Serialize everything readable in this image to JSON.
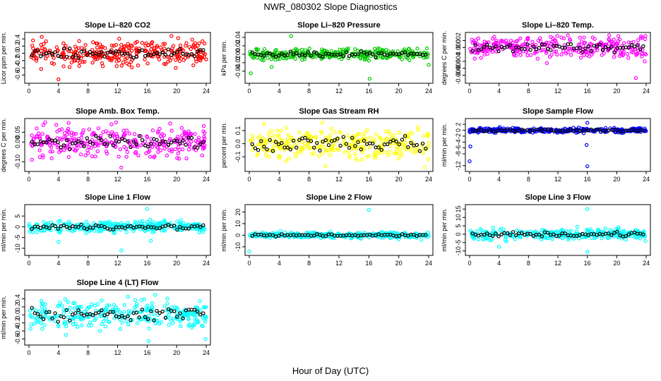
{
  "figure": {
    "title": "NWR_080302  Slope Diagnostics",
    "xlabel": "Hour of Day (UTC)"
  },
  "chart_data": [
    {
      "type": "scatter",
      "title": "Slope Li–820 CO2",
      "ylabel": "Licor ppm per min.",
      "xlim": [
        0,
        24
      ],
      "ylim": [
        -0.75,
        0.5
      ],
      "xticks": [
        "0",
        "4",
        "8",
        "12",
        "16",
        "20",
        "24"
      ],
      "yticks": [
        "-0.6",
        "-0.4",
        "-0.2",
        "0.0",
        "0.2",
        "0.4"
      ],
      "color": "#ff0000",
      "spread": 0.2,
      "seed": 11,
      "outliers": [
        [
          4.0,
          -0.72
        ],
        [
          5.5,
          -0.38
        ],
        [
          19.3,
          0.48
        ],
        [
          20.2,
          0.42
        ],
        [
          22.1,
          0.38
        ]
      ]
    },
    {
      "type": "scatter",
      "title": "Slope Li–820 Pressure",
      "ylabel": "kPa per min.",
      "xlim": [
        0,
        24
      ],
      "ylim": [
        -0.062,
        0.045
      ],
      "xticks": [
        "0",
        "4",
        "8",
        "12",
        "16",
        "20",
        "24"
      ],
      "yticks": [
        "-0.04",
        "-0.02",
        "0.00",
        "0.02",
        "0.04"
      ],
      "color": "#00cc00",
      "spread": 0.008,
      "seed": 23,
      "outliers": [
        [
          0.2,
          -0.045
        ],
        [
          5.6,
          0.043
        ],
        [
          16.1,
          -0.058
        ],
        [
          24.0,
          -0.025
        ],
        [
          16.0,
          -0.015
        ],
        [
          3.0,
          -0.03
        ]
      ]
    },
    {
      "type": "scatter",
      "title": "Slope Li–820 Temp.",
      "ylabel": "degrees C per min.",
      "xlim": [
        0,
        24
      ],
      "ylim": [
        -0.0095,
        0.0035
      ],
      "xticks": [
        "0",
        "4",
        "8",
        "12",
        "16",
        "20",
        "24"
      ],
      "yticks": [
        "-0.008",
        "-0.006",
        "-0.004",
        "0.000",
        "0.002"
      ],
      "color": "#ff00ff",
      "spread": 0.0018,
      "seed": 37,
      "outliers": [
        [
          23.3,
          0.0032
        ],
        [
          23.9,
          0.0033
        ],
        [
          22.6,
          -0.0088
        ],
        [
          23.8,
          -0.004
        ],
        [
          10.5,
          -0.0045
        ]
      ]
    },
    {
      "type": "scatter",
      "title": "Slope Amb. Box Temp.",
      "ylabel": "degrees C per min.",
      "xlim": [
        0,
        24
      ],
      "ylim": [
        -0.135,
        0.105
      ],
      "xticks": [
        "0",
        "4",
        "8",
        "12",
        "16",
        "20",
        "24"
      ],
      "yticks": [
        "-0.10",
        "0.00",
        "0.05"
      ],
      "color": "#ff00ff",
      "spread": 0.045,
      "seed": 41,
      "outliers": [
        [
          0.4,
          -0.09
        ],
        [
          2.2,
          0.1
        ],
        [
          11.8,
          0.1
        ],
        [
          12.5,
          -0.13
        ]
      ]
    },
    {
      "type": "scatter",
      "title": "Slope Gas Stream RH",
      "ylabel": "percent per min.",
      "xlim": [
        0,
        24
      ],
      "ylim": [
        -0.19,
        0.17
      ],
      "xticks": [
        "0",
        "4",
        "8",
        "12",
        "16",
        "20",
        "24"
      ],
      "yticks": [
        "-0.1",
        "0.0",
        "0.1"
      ],
      "color": "#ffff00",
      "spread": 0.07,
      "seed": 53,
      "outliers": [
        [
          9.8,
          0.16
        ],
        [
          10.2,
          -0.17
        ],
        [
          23.5,
          -0.18
        ],
        [
          2.0,
          0.15
        ]
      ]
    },
    {
      "type": "scatter",
      "title": "Slope Sample Flow",
      "ylabel": "ml/min per min.",
      "xlim": [
        0,
        24
      ],
      "ylim": [
        -13,
        3
      ],
      "xticks": [
        "0",
        "4",
        "8",
        "12",
        "16",
        "20",
        "24"
      ],
      "yticks": [
        "-12",
        "-8",
        "-6",
        "-4",
        "-2",
        "0",
        "2"
      ],
      "color": "#0000ff",
      "spread": 0.5,
      "seed": 67,
      "outliers": [
        [
          0.0,
          -10.5
        ],
        [
          0.1,
          -5.5
        ],
        [
          16.0,
          -12.2
        ],
        [
          15.9,
          -5.0
        ],
        [
          16.0,
          2.5
        ]
      ]
    },
    {
      "type": "scatter",
      "title": "Slope Line 1 Flow",
      "ylabel": "ml/min per min.",
      "xlim": [
        0,
        24
      ],
      "ylim": [
        -12,
        9
      ],
      "xticks": [
        "0",
        "4",
        "8",
        "12",
        "16",
        "20",
        "24"
      ],
      "yticks": [
        "-10",
        "-5",
        "0",
        "5"
      ],
      "color": "#00ffff",
      "spread": 1.6,
      "seed": 71,
      "outliers": [
        [
          16.0,
          8.3
        ],
        [
          4.0,
          -7.0
        ],
        [
          12.5,
          -11.0
        ],
        [
          16.5,
          -6.5
        ]
      ]
    },
    {
      "type": "scatter",
      "title": "Slope Line 2 Flow",
      "ylabel": "ml/min per min.",
      "xlim": [
        0,
        24
      ],
      "ylim": [
        -15,
        24
      ],
      "xticks": [
        "0",
        "4",
        "8",
        "12",
        "16",
        "20",
        "24"
      ],
      "yticks": [
        "-10",
        "0",
        "10",
        "20"
      ],
      "color": "#00ffff",
      "spread": 1.5,
      "seed": 79,
      "outliers": [
        [
          16.0,
          22.0
        ],
        [
          0.0,
          -14.0
        ],
        [
          20.0,
          -3.5
        ],
        [
          23.0,
          -4.0
        ]
      ]
    },
    {
      "type": "scatter",
      "title": "Slope Line 3 Flow",
      "ylabel": "ml/min per min.",
      "xlim": [
        0,
        24
      ],
      "ylim": [
        -11,
        16
      ],
      "xticks": [
        "0",
        "4",
        "8",
        "12",
        "16",
        "20",
        "24"
      ],
      "yticks": [
        "-10",
        "-5",
        "0",
        "5",
        "10",
        "15"
      ],
      "color": "#00ffff",
      "spread": 2.0,
      "seed": 83,
      "outliers": [
        [
          16.0,
          15.0
        ],
        [
          16.0,
          -10.5
        ],
        [
          4.0,
          -7.5
        ],
        [
          23.9,
          -4.0
        ]
      ]
    },
    {
      "type": "scatter",
      "title": "Slope Line 4 (LT) Flow",
      "ylabel": "ml/min per min.",
      "xlim": [
        0,
        24
      ],
      "ylim": [
        -0.68,
        0.55
      ],
      "xticks": [
        "0",
        "4",
        "8",
        "12",
        "16",
        "20",
        "24"
      ],
      "yticks": [
        "-0.6",
        "-0.4",
        "-0.2",
        "0.0",
        "0.2",
        "0.4"
      ],
      "color": "#00ffff",
      "spread": 0.2,
      "seed": 97,
      "outliers": [
        [
          16.2,
          -0.65
        ],
        [
          17.1,
          0.5
        ],
        [
          23.9,
          -0.6
        ],
        [
          5.0,
          -0.5
        ],
        [
          13.4,
          0.45
        ]
      ]
    }
  ]
}
